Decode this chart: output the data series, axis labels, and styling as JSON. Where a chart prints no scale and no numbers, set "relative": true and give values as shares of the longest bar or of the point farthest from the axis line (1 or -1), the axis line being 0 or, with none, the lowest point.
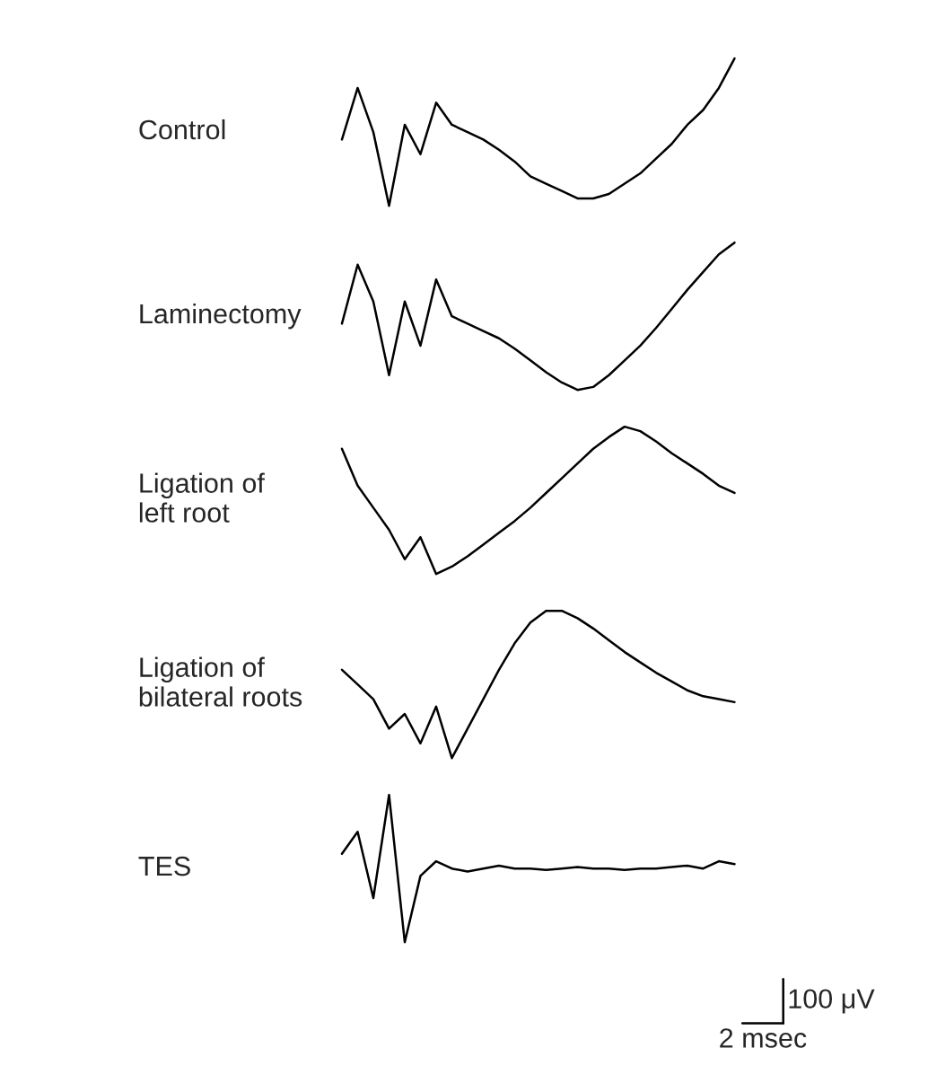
{
  "chart_data": [
    {
      "type": "line",
      "relative": true,
      "ylabel": "Control",
      "categories": [
        null,
        null,
        null,
        null,
        null,
        null,
        null,
        null,
        null,
        null,
        null,
        null,
        null,
        null,
        null,
        null,
        null,
        null,
        null,
        null,
        null,
        null,
        null,
        null,
        null,
        null
      ],
      "series": [
        {
          "color": "#000000",
          "values": [
            0.45,
            0.8,
            0.5,
            0.0,
            0.55,
            0.35,
            0.7,
            0.55,
            0.5,
            0.45,
            0.38,
            0.3,
            0.2,
            0.15,
            0.1,
            0.05,
            0.05,
            0.08,
            0.15,
            0.22,
            0.32,
            0.42,
            0.55,
            0.65,
            0.8,
            1.0
          ]
        }
      ]
    },
    {
      "type": "line",
      "relative": true,
      "ylabel": "Laminectomy",
      "categories": [
        null,
        null,
        null,
        null,
        null,
        null,
        null,
        null,
        null,
        null,
        null,
        null,
        null,
        null,
        null,
        null,
        null,
        null,
        null,
        null,
        null,
        null,
        null,
        null,
        null,
        null
      ],
      "series": [
        {
          "color": "#000000",
          "values": [
            0.45,
            0.85,
            0.6,
            0.1,
            0.6,
            0.3,
            0.75,
            0.5,
            0.45,
            0.4,
            0.35,
            0.28,
            0.2,
            0.12,
            0.05,
            0.0,
            0.02,
            0.1,
            0.2,
            0.3,
            0.42,
            0.55,
            0.68,
            0.8,
            0.92,
            1.0
          ]
        }
      ]
    },
    {
      "type": "line",
      "relative": true,
      "ylabel": "Ligation of\nleft root",
      "categories": [
        null,
        null,
        null,
        null,
        null,
        null,
        null,
        null,
        null,
        null,
        null,
        null,
        null,
        null,
        null,
        null,
        null,
        null,
        null,
        null,
        null,
        null,
        null,
        null,
        null,
        null
      ],
      "series": [
        {
          "color": "#000000",
          "values": [
            0.85,
            0.6,
            0.45,
            0.3,
            0.1,
            0.25,
            0.0,
            0.05,
            0.12,
            0.2,
            0.28,
            0.36,
            0.45,
            0.55,
            0.65,
            0.75,
            0.85,
            0.93,
            1.0,
            0.97,
            0.9,
            0.82,
            0.75,
            0.68,
            0.6,
            0.55
          ]
        }
      ]
    },
    {
      "type": "line",
      "relative": true,
      "ylabel": "Ligation of\nbilateral roots",
      "categories": [
        null,
        null,
        null,
        null,
        null,
        null,
        null,
        null,
        null,
        null,
        null,
        null,
        null,
        null,
        null,
        null,
        null,
        null,
        null,
        null,
        null,
        null,
        null,
        null,
        null,
        null
      ],
      "series": [
        {
          "color": "#000000",
          "values": [
            0.6,
            0.5,
            0.4,
            0.2,
            0.3,
            0.1,
            0.35,
            0.0,
            0.2,
            0.4,
            0.6,
            0.78,
            0.92,
            1.0,
            1.0,
            0.95,
            0.88,
            0.8,
            0.72,
            0.65,
            0.58,
            0.52,
            0.46,
            0.42,
            0.4,
            0.38
          ]
        }
      ]
    },
    {
      "type": "line",
      "relative": true,
      "ylabel": "TES",
      "annotations": [
        "100 μV",
        "2 msec"
      ],
      "categories": [
        null,
        null,
        null,
        null,
        null,
        null,
        null,
        null,
        null,
        null,
        null,
        null,
        null,
        null,
        null,
        null,
        null,
        null,
        null,
        null,
        null,
        null,
        null,
        null,
        null,
        null
      ],
      "series": [
        {
          "color": "#000000",
          "values": [
            0.6,
            0.75,
            0.3,
            1.0,
            0.0,
            0.45,
            0.55,
            0.5,
            0.48,
            0.5,
            0.52,
            0.5,
            0.5,
            0.49,
            0.5,
            0.51,
            0.5,
            0.5,
            0.49,
            0.5,
            0.5,
            0.51,
            0.52,
            0.5,
            0.55,
            0.53
          ]
        }
      ]
    }
  ]
}
